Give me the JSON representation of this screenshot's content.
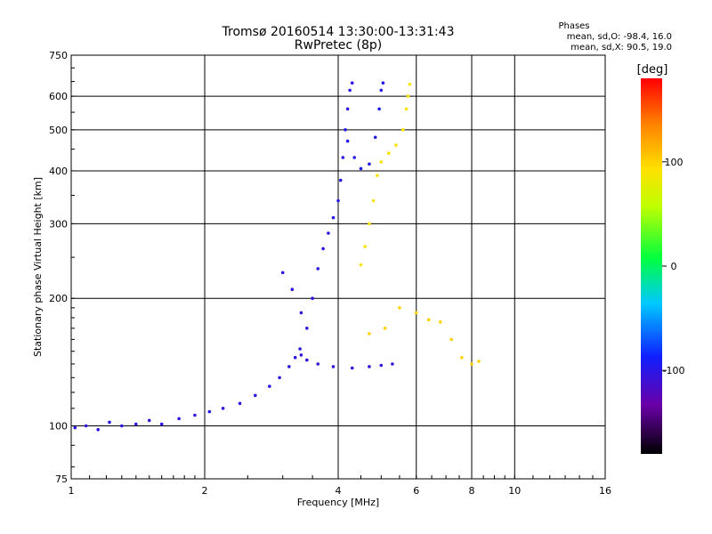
{
  "chart_data": {
    "type": "scatter",
    "title": "Tromsø 20160514 13:30:00-13:31:43",
    "subtitle": "RwPretec (8p)",
    "xlabel": "Frequency [MHz]",
    "ylabel": "Stationary phase Virtual Height [km]",
    "xscale": "log",
    "yscale": "log",
    "xlim": [
      1,
      16
    ],
    "ylim": [
      75,
      750
    ],
    "xticks": [
      1,
      2,
      4,
      6,
      8,
      10,
      16
    ],
    "yticks": [
      75,
      100,
      200,
      300,
      400,
      500,
      600,
      750
    ],
    "grid": true,
    "phases_box": {
      "title": "Phases",
      "line_o": "mean, sd,O: -98.4, 16.0",
      "line_x": "mean, sd,X:  90.5, 19.0"
    },
    "colorbar": {
      "label": "[deg]",
      "range": [
        -180,
        180
      ],
      "ticks": [
        -100,
        0,
        100
      ]
    },
    "series": [
      {
        "trace": "O-mode E/F1 lower trace",
        "phase_deg": -100,
        "points": [
          [
            1.02,
            99
          ],
          [
            1.08,
            100
          ],
          [
            1.15,
            98
          ],
          [
            1.22,
            102
          ],
          [
            1.3,
            100
          ],
          [
            1.4,
            101
          ],
          [
            1.5,
            103
          ],
          [
            1.6,
            101
          ],
          [
            1.75,
            104
          ],
          [
            1.9,
            106
          ],
          [
            2.05,
            108
          ],
          [
            2.2,
            110
          ],
          [
            2.4,
            113
          ],
          [
            2.6,
            118
          ],
          [
            2.8,
            124
          ],
          [
            2.95,
            130
          ],
          [
            3.1,
            138
          ],
          [
            3.2,
            145
          ],
          [
            3.28,
            152
          ]
        ]
      },
      {
        "trace": "O-mode F1 cusp",
        "phase_deg": -105,
        "points": [
          [
            3.3,
            147
          ],
          [
            3.4,
            143
          ],
          [
            3.6,
            140
          ],
          [
            3.9,
            138
          ],
          [
            4.3,
            137
          ],
          [
            4.7,
            138
          ],
          [
            5.0,
            139
          ],
          [
            5.3,
            140
          ]
        ]
      },
      {
        "trace": "O-mode rising branch",
        "phase_deg": -100,
        "points": [
          [
            3.0,
            230
          ],
          [
            3.15,
            210
          ],
          [
            3.3,
            185
          ],
          [
            3.4,
            170
          ],
          [
            3.5,
            200
          ],
          [
            3.6,
            235
          ],
          [
            3.7,
            262
          ],
          [
            3.8,
            285
          ],
          [
            3.9,
            310
          ],
          [
            4.0,
            340
          ],
          [
            4.05,
            380
          ],
          [
            4.1,
            430
          ],
          [
            4.15,
            500
          ],
          [
            4.2,
            560
          ],
          [
            4.25,
            620
          ],
          [
            4.3,
            645
          ]
        ]
      },
      {
        "trace": "O-mode upper loop",
        "phase_deg": -95,
        "points": [
          [
            4.2,
            470
          ],
          [
            4.35,
            430
          ],
          [
            4.5,
            405
          ],
          [
            4.7,
            415
          ],
          [
            4.85,
            480
          ],
          [
            4.95,
            560
          ],
          [
            5.0,
            620
          ],
          [
            5.05,
            645
          ]
        ]
      },
      {
        "trace": "X-mode trace",
        "phase_deg": 90,
        "points": [
          [
            4.5,
            240
          ],
          [
            4.6,
            265
          ],
          [
            4.7,
            300
          ],
          [
            4.8,
            340
          ],
          [
            4.9,
            390
          ],
          [
            5.0,
            420
          ],
          [
            5.2,
            440
          ],
          [
            5.4,
            460
          ],
          [
            5.6,
            500
          ],
          [
            5.7,
            560
          ],
          [
            5.75,
            600
          ],
          [
            5.8,
            640
          ]
        ]
      },
      {
        "trace": "X-mode lower echoes",
        "phase_deg": 100,
        "points": [
          [
            4.7,
            165
          ],
          [
            5.1,
            170
          ],
          [
            5.5,
            190
          ],
          [
            6.0,
            185
          ],
          [
            6.4,
            178
          ],
          [
            6.8,
            176
          ],
          [
            7.2,
            160
          ],
          [
            7.6,
            145
          ],
          [
            8.0,
            140
          ],
          [
            8.3,
            142
          ]
        ]
      }
    ]
  }
}
